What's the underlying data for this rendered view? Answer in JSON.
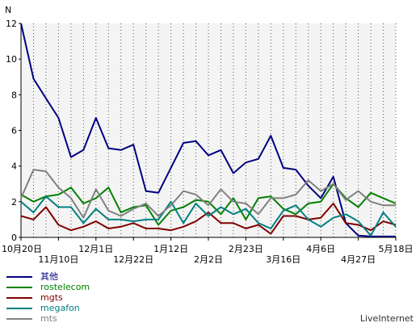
{
  "chart_data": {
    "type": "line",
    "ylabel": "N",
    "ylim": [
      0,
      12
    ],
    "yticks": [
      "0",
      "2",
      "4",
      "6",
      "8",
      "10",
      "12"
    ],
    "x_labels_row1": [
      {
        "label": "10月20日",
        "index": 0
      },
      {
        "label": "12月1日",
        "index": 6
      },
      {
        "label": "1月12日",
        "index": 12
      },
      {
        "label": "2月23日",
        "index": 18
      },
      {
        "label": "4月6日",
        "index": 24
      },
      {
        "label": "5月18日",
        "index": 30
      }
    ],
    "x_labels_row2": [
      {
        "label": "11月10日",
        "index": 3
      },
      {
        "label": "12月22日",
        "index": 9
      },
      {
        "label": "2月2日",
        "index": 15
      },
      {
        "label": "3月16日",
        "index": 21
      },
      {
        "label": "4月27日",
        "index": 27
      }
    ],
    "grid": true,
    "legend_position": "bottom-left",
    "series": [
      {
        "name": "其他",
        "color": "#000080",
        "values": [
          12,
          8.9,
          7.8,
          6.7,
          4.5,
          4.9,
          6.7,
          5.0,
          4.9,
          5.2,
          2.6,
          2.5,
          3.9,
          5.3,
          5.4,
          4.6,
          4.9,
          3.6,
          4.2,
          4.4,
          5.7,
          3.9,
          3.8,
          2.9,
          2.2,
          3.4,
          0.8,
          0.1,
          0.05,
          0.05,
          0.05
        ]
      },
      {
        "name": "rostelecom",
        "color": "#008000",
        "values": [
          2.4,
          2.0,
          2.3,
          2.4,
          2.8,
          1.9,
          2.2,
          2.8,
          1.4,
          1.7,
          1.8,
          0.7,
          1.5,
          1.7,
          2.1,
          2.0,
          1.3,
          2.2,
          1.0,
          2.2,
          2.3,
          1.6,
          1.3,
          1.9,
          2.0,
          3.0,
          2.2,
          1.7,
          2.5,
          2.2,
          1.9
        ]
      },
      {
        "name": "mgts",
        "color": "#800000",
        "values": [
          1.2,
          1.0,
          1.7,
          0.7,
          0.4,
          0.6,
          0.9,
          0.5,
          0.6,
          0.8,
          0.5,
          0.5,
          0.4,
          0.6,
          0.9,
          1.4,
          0.8,
          0.8,
          0.5,
          0.7,
          0.2,
          1.2,
          1.2,
          1.0,
          1.1,
          1.9,
          0.8,
          0.7,
          0.4,
          0.9,
          0.7
        ]
      },
      {
        "name": "megafon",
        "color": "#008080",
        "values": [
          2.0,
          1.4,
          2.3,
          1.7,
          1.7,
          0.8,
          1.6,
          1.0,
          1.0,
          0.9,
          1.0,
          1.0,
          2.0,
          0.8,
          1.9,
          1.2,
          1.7,
          1.3,
          1.6,
          0.8,
          0.5,
          1.5,
          1.8,
          1.0,
          0.6,
          1.1,
          1.3,
          0.9,
          0.1,
          1.4,
          0.6
        ]
      },
      {
        "name": "mts",
        "color": "#808080",
        "values": [
          2.2,
          3.8,
          3.7,
          2.8,
          2.2,
          1.1,
          2.7,
          1.5,
          1.2,
          1.6,
          1.9,
          1.2,
          1.8,
          2.6,
          2.4,
          1.8,
          2.7,
          2.0,
          1.9,
          1.3,
          2.2,
          2.2,
          2.4,
          3.2,
          2.6,
          3.0,
          2.1,
          2.6,
          2.0,
          1.8,
          1.8
        ]
      }
    ]
  },
  "brand": "LiveInternet"
}
